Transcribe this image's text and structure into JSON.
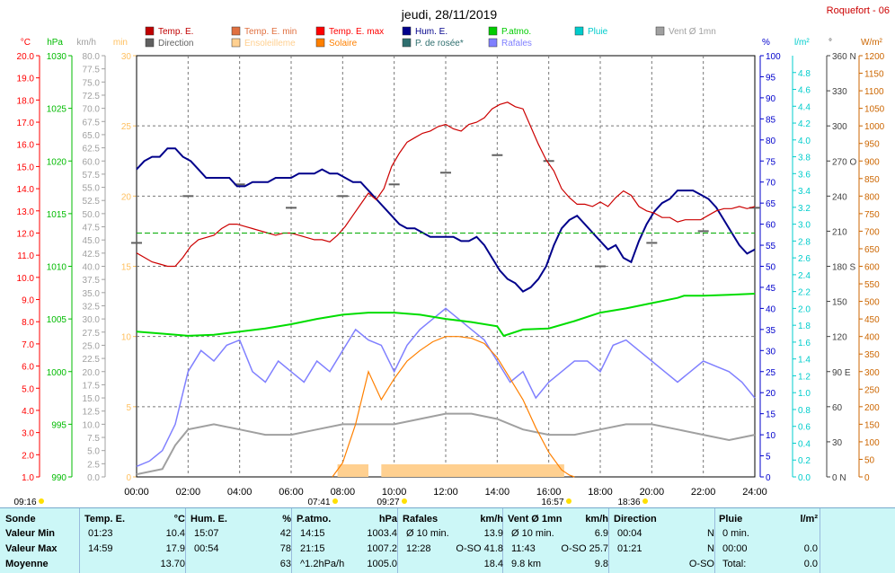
{
  "header": {
    "title": "jeudi, 28/11/2019",
    "station": "Roquefort - 06"
  },
  "legend": [
    {
      "label": "Temp. E.",
      "color": "#c00000"
    },
    {
      "label": "Temp. E. min",
      "color": "#e07040"
    },
    {
      "label": "Temp. E. max",
      "color": "#ff0000"
    },
    {
      "label": "Hum. E.",
      "color": "#00008b"
    },
    {
      "label": "P.atmo.",
      "color": "#00cc00"
    },
    {
      "label": "Pluie",
      "color": "#00cccc"
    },
    {
      "label": "Vent Ø 1mn",
      "color": "#a0a0a0"
    },
    {
      "label": "Direction",
      "color": "#606060"
    },
    {
      "label": "Ensoleilleme",
      "color": "#ffd090"
    },
    {
      "label": "Solaire",
      "color": "#ff8000"
    },
    {
      "label": "P. de rosée*",
      "color": "#2f6f6f"
    },
    {
      "label": "Rafales",
      "color": "#8080ff"
    }
  ],
  "axes": {
    "temp": {
      "unit": "°C",
      "ticks": [
        "20.0",
        "19.0",
        "18.0",
        "17.0",
        "16.0",
        "15.0",
        "14.0",
        "13.0",
        "12.0",
        "11.0",
        "10.0",
        "9.0",
        "8.0",
        "7.0",
        "6.0",
        "5.0",
        "4.0",
        "3.0",
        "2.0",
        "1.0"
      ],
      "color": "#ff0000"
    },
    "press": {
      "unit": "hPa",
      "ticks": [
        "1030",
        "1025",
        "1020",
        "1015",
        "1010",
        "1005",
        "1000",
        "995",
        "990"
      ],
      "color": "#00bb00"
    },
    "wind": {
      "unit": "km/h",
      "ticks": [
        "80.0",
        "77.5",
        "75.0",
        "72.5",
        "70.0",
        "67.5",
        "65.0",
        "62.5",
        "60.0",
        "57.5",
        "55.0",
        "52.5",
        "50.0",
        "47.5",
        "45.0",
        "42.5",
        "40.0",
        "37.5",
        "35.0",
        "32.5",
        "30.0",
        "27.5",
        "25.0",
        "22.5",
        "20.0",
        "17.5",
        "15.0",
        "12.5",
        "10.0",
        "7.5",
        "5.0",
        "2.5",
        "0.0"
      ],
      "color": "#a0a0a0"
    },
    "sun": {
      "unit": "min",
      "ticks": [
        "30",
        "25",
        "20",
        "15",
        "10",
        "5",
        "0"
      ],
      "color": "#ffc060"
    },
    "hum": {
      "unit": "%",
      "ticks": [
        "100",
        "95",
        "90",
        "85",
        "80",
        "75",
        "70",
        "65",
        "60",
        "55",
        "50",
        "45",
        "40",
        "35",
        "30",
        "25",
        "20",
        "15",
        "10",
        "5",
        "0"
      ],
      "color": "#0000cc"
    },
    "rain": {
      "unit": "l/m²",
      "ticks": [
        "4.8",
        "4.6",
        "4.4",
        "4.2",
        "4.0",
        "3.8",
        "3.6",
        "3.4",
        "3.2",
        "3.0",
        "2.8",
        "2.6",
        "2.4",
        "2.2",
        "2.0",
        "1.8",
        "1.6",
        "1.4",
        "1.2",
        "1.0",
        "0.8",
        "0.6",
        "0.4",
        "0.2",
        "0.0"
      ],
      "color": "#00cccc"
    },
    "dir": {
      "unit": "°",
      "ticks": [
        "360 N",
        "330",
        "300",
        "270 O",
        "240",
        "210",
        "180 S",
        "150",
        "120",
        "90 E",
        "60",
        "30",
        "0 N"
      ],
      "color": "#404040"
    },
    "solar": {
      "unit": "W/m²",
      "ticks": [
        "1200",
        "1150",
        "1100",
        "1050",
        "1000",
        "950",
        "900",
        "850",
        "800",
        "750",
        "700",
        "650",
        "600",
        "550",
        "500",
        "450",
        "400",
        "350",
        "300",
        "250",
        "200",
        "150",
        "100",
        "50",
        "0"
      ],
      "color": "#cc6600"
    },
    "time": [
      "00:00",
      "02:00",
      "04:00",
      "06:00",
      "08:00",
      "10:00",
      "12:00",
      "14:00",
      "16:00",
      "18:00",
      "20:00",
      "22:00",
      "24:00"
    ]
  },
  "events": [
    {
      "label": "09:16",
      "kind": "moonrise"
    },
    {
      "label": "07:41",
      "kind": "sunrise"
    },
    {
      "label": "09:27",
      "kind": "sun"
    },
    {
      "label": "16:57",
      "kind": "sunset"
    },
    {
      "label": "18:36",
      "kind": "moonset"
    }
  ],
  "chart_data": {
    "type": "line",
    "title": "jeudi, 28/11/2019",
    "x_unit": "hour",
    "x_range": [
      0,
      24
    ],
    "series": [
      {
        "name": "Temp. E.",
        "unit": "°C",
        "x": [
          0,
          0.3,
          0.6,
          0.9,
          1.2,
          1.5,
          1.8,
          2.1,
          2.4,
          2.7,
          3.0,
          3.3,
          3.6,
          3.9,
          4.2,
          4.5,
          4.8,
          5.1,
          5.4,
          5.7,
          6.0,
          6.3,
          6.6,
          6.9,
          7.2,
          7.5,
          7.8,
          8.1,
          8.4,
          8.7,
          9.0,
          9.3,
          9.6,
          9.9,
          10.2,
          10.5,
          10.8,
          11.1,
          11.4,
          11.7,
          12.0,
          12.3,
          12.6,
          12.9,
          13.2,
          13.5,
          13.8,
          14.1,
          14.4,
          14.7,
          15.0,
          15.3,
          15.6,
          15.9,
          16.2,
          16.5,
          16.8,
          17.1,
          17.4,
          17.7,
          18.0,
          18.3,
          18.6,
          18.9,
          19.2,
          19.5,
          19.8,
          20.1,
          20.4,
          20.7,
          21.0,
          21.3,
          21.6,
          21.9,
          22.2,
          22.5,
          22.8,
          23.1,
          23.4,
          23.7,
          24.0
        ],
        "y": [
          11.1,
          10.9,
          10.7,
          10.6,
          10.5,
          10.5,
          10.9,
          11.4,
          11.7,
          11.8,
          11.9,
          12.2,
          12.4,
          12.4,
          12.3,
          12.2,
          12.1,
          12.0,
          11.9,
          12.0,
          12.0,
          11.9,
          11.8,
          11.7,
          11.7,
          11.6,
          11.9,
          12.3,
          12.8,
          13.3,
          13.8,
          13.5,
          14.0,
          15.0,
          15.6,
          16.1,
          16.3,
          16.5,
          16.6,
          16.8,
          16.9,
          16.7,
          16.6,
          16.9,
          17.0,
          17.2,
          17.6,
          17.8,
          17.9,
          17.7,
          17.6,
          16.8,
          16.0,
          15.3,
          14.8,
          14.0,
          13.6,
          13.3,
          13.3,
          13.2,
          13.4,
          13.2,
          13.6,
          13.9,
          13.7,
          13.2,
          13.0,
          12.9,
          12.7,
          12.7,
          12.5,
          12.6,
          12.6,
          12.6,
          12.8,
          13.0,
          13.1,
          13.1,
          13.2,
          13.1,
          13.2
        ]
      },
      {
        "name": "Hum. E.",
        "unit": "%",
        "x": [
          0,
          0.3,
          0.6,
          0.9,
          1.2,
          1.5,
          1.8,
          2.1,
          2.4,
          2.7,
          3.0,
          3.3,
          3.6,
          3.9,
          4.2,
          4.5,
          4.8,
          5.1,
          5.4,
          5.7,
          6.0,
          6.3,
          6.6,
          6.9,
          7.2,
          7.5,
          7.8,
          8.1,
          8.4,
          8.7,
          9.0,
          9.3,
          9.6,
          9.9,
          10.2,
          10.5,
          10.8,
          11.1,
          11.4,
          11.7,
          12.0,
          12.3,
          12.6,
          12.9,
          13.2,
          13.5,
          13.8,
          14.1,
          14.4,
          14.7,
          15.0,
          15.3,
          15.6,
          15.9,
          16.2,
          16.5,
          16.8,
          17.1,
          17.4,
          17.7,
          18.0,
          18.3,
          18.6,
          18.9,
          19.2,
          19.5,
          19.8,
          20.1,
          20.4,
          20.7,
          21.0,
          21.3,
          21.6,
          21.9,
          22.2,
          22.5,
          22.8,
          23.1,
          23.4,
          23.7,
          24.0
        ],
        "y": [
          73,
          75,
          76,
          76,
          78,
          78,
          76,
          75,
          73,
          71,
          71,
          71,
          71,
          69,
          69,
          70,
          70,
          70,
          71,
          71,
          71,
          72,
          72,
          72,
          73,
          72,
          72,
          71,
          70,
          70,
          68,
          66,
          64,
          62,
          60,
          59,
          59,
          58,
          57,
          57,
          57,
          57,
          56,
          56,
          57,
          55,
          52,
          49,
          47,
          46,
          44,
          45,
          47,
          50,
          55,
          59,
          61,
          62,
          60,
          58,
          56,
          54,
          55,
          52,
          51,
          56,
          60,
          63,
          65,
          66,
          68,
          68,
          68,
          67,
          66,
          64,
          61,
          58,
          55,
          53,
          54
        ]
      },
      {
        "name": "P.atmo.",
        "unit": "hPa",
        "x": [
          0,
          1,
          2,
          3,
          4,
          5,
          6,
          7,
          8,
          9,
          10,
          11,
          12,
          13,
          14,
          14.25,
          15,
          16,
          17,
          18,
          19,
          20,
          21,
          21.25,
          22,
          23,
          24
        ],
        "y": [
          1003.8,
          1003.6,
          1003.4,
          1003.5,
          1003.8,
          1004.1,
          1004.5,
          1005.0,
          1005.4,
          1005.6,
          1005.6,
          1005.4,
          1005.0,
          1004.7,
          1004.3,
          1003.4,
          1004.0,
          1004.1,
          1004.8,
          1005.6,
          1006.0,
          1006.5,
          1007.0,
          1007.2,
          1007.2,
          1007.3,
          1007.4
        ]
      },
      {
        "name": "Solaire",
        "unit": "W/m²",
        "x": [
          7.6,
          8.0,
          8.5,
          9.0,
          9.5,
          10.0,
          10.5,
          11.0,
          11.5,
          12.0,
          12.5,
          13.0,
          13.5,
          14.0,
          14.5,
          15.0,
          15.5,
          16.0,
          16.5,
          16.8,
          17.0
        ],
        "y": [
          0,
          40,
          150,
          300,
          220,
          280,
          330,
          360,
          385,
          400,
          400,
          395,
          380,
          340,
          280,
          220,
          140,
          70,
          20,
          5,
          0
        ]
      },
      {
        "name": "Rafales",
        "unit": "km/h",
        "x": [
          0,
          0.5,
          1,
          1.5,
          2,
          2.5,
          3,
          3.5,
          4,
          4.5,
          5,
          5.5,
          6,
          6.5,
          7,
          7.5,
          8,
          8.5,
          9,
          9.5,
          10,
          10.5,
          11,
          11.5,
          12,
          12.5,
          13,
          13.5,
          14,
          14.5,
          15,
          15.5,
          16,
          16.5,
          17,
          17.5,
          18,
          18.5,
          19,
          19.5,
          20,
          20.5,
          21,
          21.5,
          22,
          22.5,
          23,
          23.5,
          24
        ],
        "y": [
          2,
          3,
          5,
          10,
          20,
          24,
          22,
          25,
          26,
          20,
          18,
          22,
          20,
          18,
          22,
          20,
          24,
          28,
          26,
          25,
          20,
          25,
          28,
          30,
          32,
          30,
          28,
          26,
          22,
          18,
          20,
          15,
          18,
          20,
          22,
          22,
          20,
          25,
          26,
          24,
          22,
          20,
          18,
          20,
          22,
          21,
          20,
          18,
          15
        ]
      },
      {
        "name": "Vent Ø 1mn",
        "unit": "km/h",
        "x": [
          0,
          1,
          1.5,
          2,
          3,
          4,
          5,
          6,
          7,
          8,
          9,
          10,
          11,
          12,
          13,
          14,
          15,
          16,
          17,
          18,
          19,
          20,
          21,
          22,
          23,
          24
        ],
        "y": [
          0.5,
          1.5,
          6,
          9,
          10,
          9,
          8,
          8,
          9,
          10,
          10,
          10,
          11,
          12,
          12,
          11,
          9,
          8,
          8,
          9,
          10,
          10,
          9,
          8,
          7,
          8
        ]
      },
      {
        "name": "Direction",
        "unit": "°",
        "x": [
          0,
          2,
          4,
          6,
          8,
          10,
          12,
          14,
          16,
          18,
          20,
          22,
          24
        ],
        "y": [
          200,
          240,
          250,
          230,
          240,
          250,
          260,
          275,
          270,
          180,
          200,
          210,
          230
        ]
      }
    ],
    "ylim_temp": [
      1.0,
      20.0
    ],
    "ylim_press": [
      990,
      1030
    ],
    "ylim_hum": [
      0,
      100
    ],
    "ylim_solar": [
      0,
      1200
    ]
  },
  "table": {
    "headers": [
      {
        "label": "Sonde",
        "unit": ""
      },
      {
        "label": "Temp. E.",
        "unit": "°C"
      },
      {
        "label": "Hum. E.",
        "unit": "%"
      },
      {
        "label": "P.atmo.",
        "unit": "hPa"
      },
      {
        "label": "Rafales",
        "unit": "km/h"
      },
      {
        "label": "Vent Ø 1mn",
        "unit": "km/h"
      },
      {
        "label": "Direction",
        "unit": ""
      },
      {
        "label": "Pluie",
        "unit": "l/m²"
      }
    ],
    "rows": [
      {
        "label": "Valeur Min",
        "cells": [
          [
            "01:23",
            "10.4"
          ],
          [
            "15:07",
            "42"
          ],
          [
            "14:15",
            "1003.4"
          ],
          [
            "Ø 10 min.",
            "13.9"
          ],
          [
            "Ø 10 min.",
            "6.9"
          ],
          [
            "00:04",
            "N"
          ],
          [
            "0 min.",
            ""
          ]
        ]
      },
      {
        "label": "Valeur Max",
        "cells": [
          [
            "14:59",
            "17.9"
          ],
          [
            "00:54",
            "78"
          ],
          [
            "21:15",
            "1007.2"
          ],
          [
            "12:28",
            "O-SO 41.8"
          ],
          [
            "11:43",
            "O-SO 25.7"
          ],
          [
            "01:21",
            "N"
          ],
          [
            "00:00",
            "0.0"
          ]
        ]
      },
      {
        "label": "Moyenne",
        "cells": [
          [
            "",
            "13.70"
          ],
          [
            "",
            "63"
          ],
          [
            "^1.2hPa/h",
            "1005.0"
          ],
          [
            "",
            "18.4"
          ],
          [
            "9.8 km",
            "9.8"
          ],
          [
            "",
            "O-SO"
          ],
          [
            "Total:",
            "0.0"
          ]
        ]
      }
    ]
  }
}
